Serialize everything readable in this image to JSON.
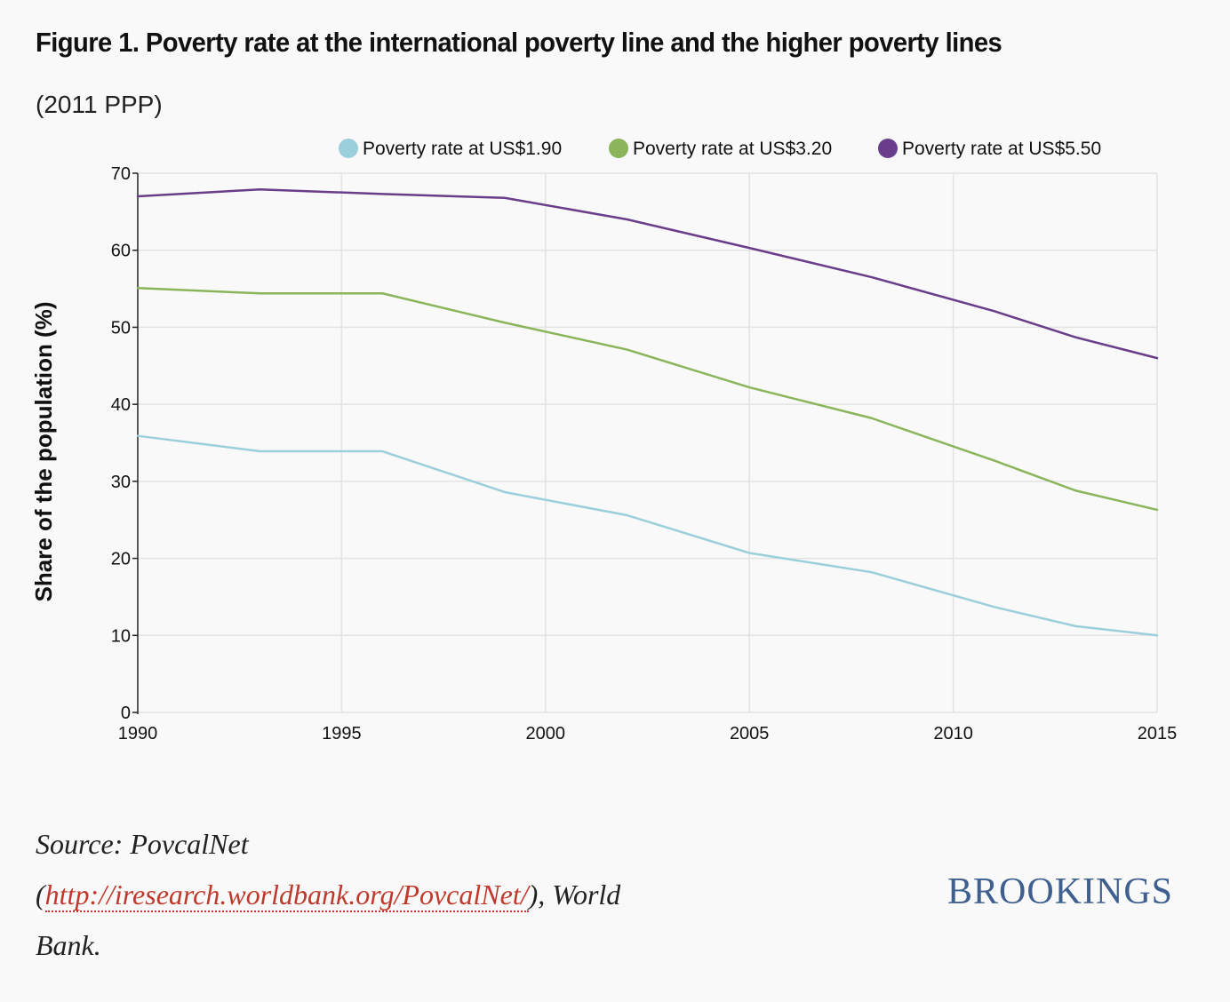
{
  "title": "Figure 1. Poverty rate at the international poverty line and the higher poverty lines",
  "subtitle": "(2011 PPP)",
  "chart_data": {
    "type": "line",
    "title": "Figure 1. Poverty rate at the international poverty line and the higher poverty lines",
    "subtitle": "(2011 PPP)",
    "xlabel": "",
    "ylabel": "Share of the population (%)",
    "xlim": [
      1990,
      2015
    ],
    "ylim": [
      0,
      70
    ],
    "xticks": [
      1990,
      1995,
      2000,
      2005,
      2010,
      2015
    ],
    "yticks": [
      0,
      10,
      20,
      30,
      40,
      50,
      60,
      70
    ],
    "grid": true,
    "legend_position": "top",
    "series": [
      {
        "name": "Poverty rate at US$1.90",
        "color": "#9ccfdc",
        "x": [
          1990,
          1993,
          1996,
          1999,
          2002,
          2005,
          2008,
          2011,
          2013,
          2015
        ],
        "values": [
          35.9,
          33.9,
          33.9,
          28.6,
          25.6,
          20.7,
          18.2,
          13.7,
          11.2,
          10.0
        ]
      },
      {
        "name": "Poverty rate at US$3.20",
        "color": "#8ab55a",
        "x": [
          1990,
          1993,
          1996,
          1999,
          2002,
          2005,
          2008,
          2011,
          2013,
          2015
        ],
        "values": [
          55.1,
          54.4,
          54.4,
          50.6,
          47.1,
          42.2,
          38.2,
          32.7,
          28.8,
          26.3
        ]
      },
      {
        "name": "Poverty rate at US$5.50",
        "color": "#6a3d8a",
        "x": [
          1990,
          1993,
          1996,
          1999,
          2002,
          2005,
          2008,
          2011,
          2013,
          2015
        ],
        "values": [
          67.0,
          67.9,
          67.3,
          66.8,
          64.0,
          60.3,
          56.5,
          52.1,
          48.7,
          46.0
        ]
      }
    ]
  },
  "source": {
    "prefix": "Source: PovcalNet",
    "open_paren": "(",
    "link_text": "http://iresearch.worldbank.org/PovcalNet/",
    "suffix_line2": "), World",
    "suffix_line3": "Bank."
  },
  "brand": "BROOKINGS"
}
